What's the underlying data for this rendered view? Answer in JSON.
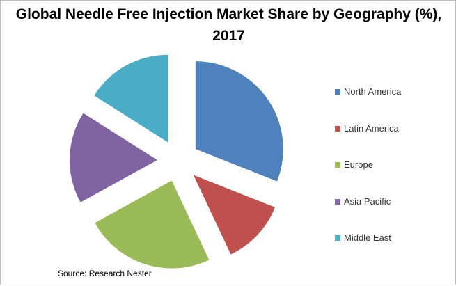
{
  "chart_data": {
    "type": "pie",
    "title": "Global Needle Free Injection Market Share by Geography (%), 2017",
    "categories": [
      "North America",
      "Latin America",
      "Europe",
      "Asia Pacific",
      "Middle East"
    ],
    "values": [
      31,
      12,
      24,
      17,
      16
    ],
    "colors": [
      "#4F81BD",
      "#C0504D",
      "#9BBB59",
      "#8064A2",
      "#4BACC6"
    ],
    "exploded": true,
    "legend_position": "right",
    "source": "Source: Research Nester"
  }
}
